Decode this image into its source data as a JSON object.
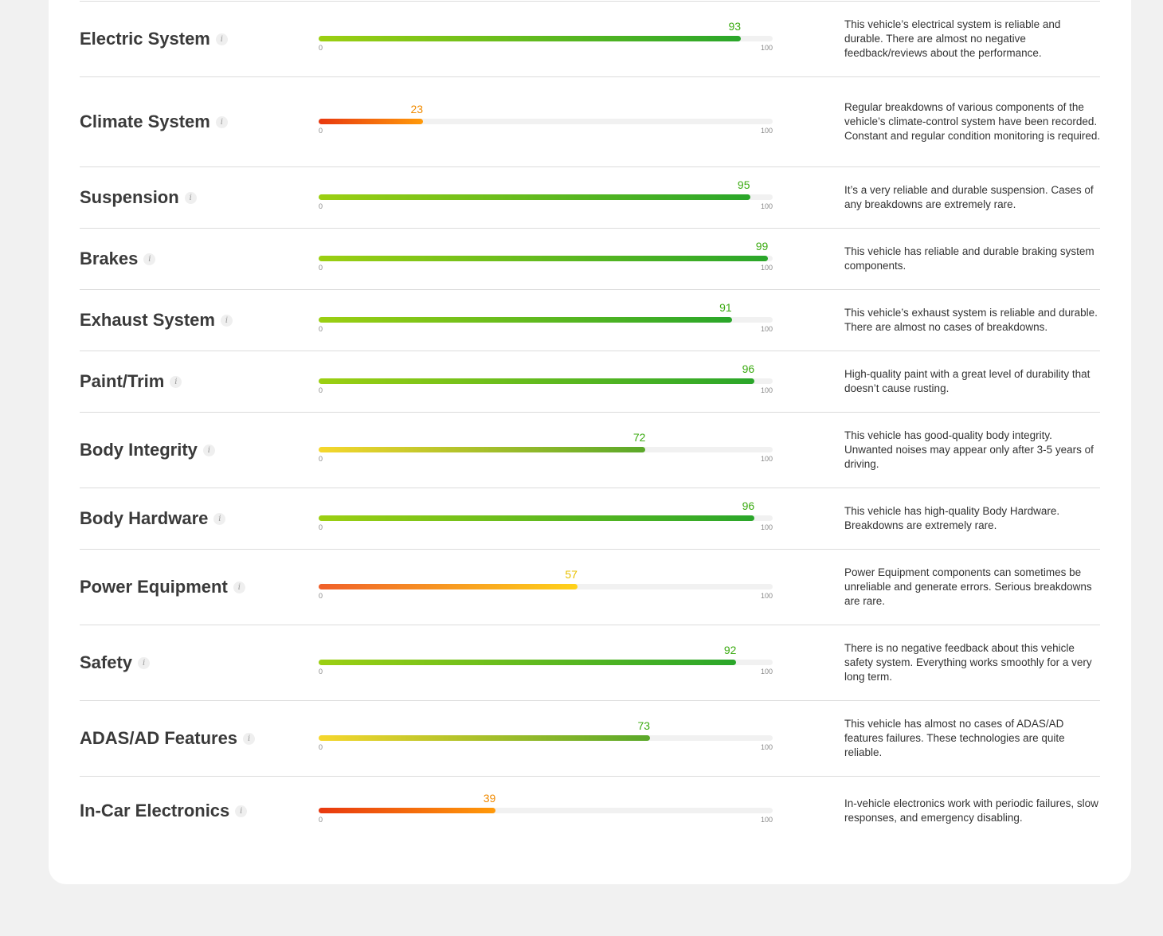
{
  "scale": {
    "min": "0",
    "max": "100"
  },
  "colors": {
    "green_text": "#3cab12",
    "orange_text": "#f08a00",
    "yellow_text": "#e8c000",
    "green_grad": [
      "#9ccf12",
      "#2aa62a"
    ],
    "orange_grad": [
      "#e8380f",
      "#ff9a0a"
    ],
    "yellowgreen_grad": [
      "#f6d72c",
      "#5aa82a"
    ],
    "orangeyellow_grad": [
      "#f0602a",
      "#ffd21a"
    ]
  },
  "ratings": [
    {
      "name": "Electric System",
      "score": 93,
      "scheme": "green",
      "description": "This vehicle’s electrical system is reliable and durable. There are almost no negative feedback/reviews about the performance."
    },
    {
      "name": "Climate System",
      "score": 23,
      "scheme": "orange",
      "description": "Regular breakdowns of various components of the vehicle’s climate-control system have been recorded. Constant and regular condition monitoring is required."
    },
    {
      "name": "Suspension",
      "score": 95,
      "scheme": "green",
      "description": "It’s a very reliable and durable suspension. Cases of any breakdowns are extremely rare."
    },
    {
      "name": "Brakes",
      "score": 99,
      "scheme": "green",
      "description": "This vehicle has reliable and durable braking system components."
    },
    {
      "name": "Exhaust System",
      "score": 91,
      "scheme": "green",
      "description": "This vehicle’s exhaust system is reliable and durable. There are almost no cases of breakdowns."
    },
    {
      "name": "Paint/Trim",
      "score": 96,
      "scheme": "green",
      "description": "High-quality paint with a great level of durability that doesn’t cause rusting."
    },
    {
      "name": "Body Integrity",
      "score": 72,
      "scheme": "yellowgreen",
      "description": "This vehicle has good-quality body integrity. Unwanted noises may appear only after 3-5 years of driving."
    },
    {
      "name": "Body Hardware",
      "score": 96,
      "scheme": "green",
      "description": "This vehicle has high-quality Body Hardware. Breakdowns are extremely rare."
    },
    {
      "name": "Power Equipment",
      "score": 57,
      "scheme": "orangeyellow",
      "description": "Power Equipment components can sometimes be unreliable and generate errors. Serious breakdowns are rare."
    },
    {
      "name": "Safety",
      "score": 92,
      "scheme": "green",
      "description": "There is no negative feedback about this vehicle safety system. Everything works smoothly for a very long term."
    },
    {
      "name": "ADAS/AD Features",
      "score": 73,
      "scheme": "yellowgreen",
      "description": "This vehicle has almost no cases of ADAS/AD features failures. These technologies are quite reliable."
    },
    {
      "name": "In-Car Electronics",
      "score": 39,
      "scheme": "orange",
      "description": "In-vehicle electronics work with periodic failures, slow responses, and emergency disabling."
    }
  ]
}
